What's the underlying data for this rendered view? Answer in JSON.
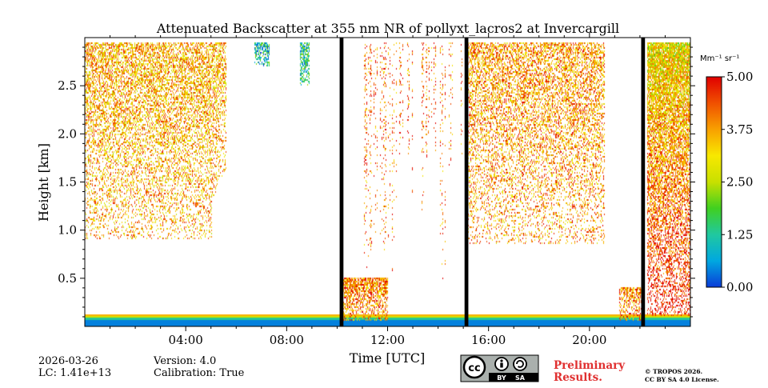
{
  "chart_data": {
    "type": "heatmap",
    "title": "Attenuated Backscatter at 355 nm NR of pollyxt_lacros2 at Invercargill",
    "xlabel": "Time [UTC]",
    "ylabel": "Height [km]",
    "xlim_hours": [
      0,
      24
    ],
    "ylim_km": [
      0,
      3.0
    ],
    "x_ticks": [
      {
        "hour": 4,
        "label": "04:00"
      },
      {
        "hour": 8,
        "label": "08:00"
      },
      {
        "hour": 12,
        "label": "12:00"
      },
      {
        "hour": 16,
        "label": "16:00"
      },
      {
        "hour": 20,
        "label": "20:00"
      }
    ],
    "y_ticks": [
      {
        "value": 0.5,
        "label": "0.5"
      },
      {
        "value": 1.0,
        "label": "1.0"
      },
      {
        "value": 1.5,
        "label": "1.5"
      },
      {
        "value": 2.0,
        "label": "2.0"
      },
      {
        "value": 2.5,
        "label": "2.5"
      }
    ],
    "colorbar": {
      "unit": "Mm⁻¹ sr⁻¹",
      "range": [
        0.0,
        5.0
      ],
      "ticks": [
        {
          "value": 0.0,
          "label": "0.00"
        },
        {
          "value": 1.25,
          "label": "1.25"
        },
        {
          "value": 2.5,
          "label": "2.50"
        },
        {
          "value": 3.75,
          "label": "3.75"
        },
        {
          "value": 5.0,
          "label": "5.00"
        }
      ],
      "colors": [
        "#0a3cd8",
        "#00a8e0",
        "#20c8a0",
        "#40d020",
        "#c8e000",
        "#f8e800",
        "#f8a000",
        "#f05000",
        "#e00000"
      ]
    },
    "no_data_gaps_hours": [
      [
        10.1,
        10.25
      ],
      [
        15.05,
        15.2
      ],
      [
        22.05,
        22.2
      ]
    ],
    "signal_regions": [
      {
        "name": "night-aerosol-layer",
        "start": 0.0,
        "end": 5.6,
        "top_km": 2.95,
        "bottom_km": 0.9,
        "density": 0.55,
        "mean": 3.6
      },
      {
        "name": "cloud-0700",
        "start": 6.75,
        "end": 7.3,
        "top_km": 2.95,
        "bottom_km": 2.7,
        "density": 0.8,
        "mean": 1.1
      },
      {
        "name": "cloud-0830",
        "start": 8.55,
        "end": 8.9,
        "top_km": 2.95,
        "bottom_km": 2.5,
        "density": 0.85,
        "mean": 1.3
      },
      {
        "name": "convective-plumes",
        "start": 11.0,
        "end": 15.0,
        "top_km": 2.95,
        "bottom_km": 0.3,
        "density": 0.25,
        "mean": 4.2
      },
      {
        "name": "evening-aerosol-layer",
        "start": 15.2,
        "end": 20.6,
        "top_km": 2.95,
        "bottom_km": 0.85,
        "density": 0.5,
        "mean": 3.8
      },
      {
        "name": "late-boundary-layer",
        "start": 22.3,
        "end": 24.0,
        "top_km": 2.95,
        "bottom_km": 0.1,
        "density": 0.9,
        "mean": 3.0
      },
      {
        "name": "noon-boundary-layer",
        "start": 10.25,
        "end": 12.0,
        "top_km": 0.5,
        "bottom_km": 0.05,
        "density": 0.8,
        "mean": 4.0
      },
      {
        "name": "dusk-boundary-layer",
        "start": 21.2,
        "end": 22.05,
        "top_km": 0.4,
        "bottom_km": 0.05,
        "density": 0.7,
        "mean": 4.0
      }
    ]
  },
  "footer": {
    "date": "2026-03-26",
    "lc": "LC: 1.41e+13",
    "version": "Version: 4.0",
    "calibration": "Calibration: True",
    "preliminary_line1": "Preliminary",
    "preliminary_line2": "Results.",
    "copyright_line1": "© TROPOS 2026.",
    "copyright_line2": "CC BY SA 4.0 License.",
    "license_badge": {
      "cc": "cc",
      "by": "BY",
      "sa": "SA"
    }
  }
}
